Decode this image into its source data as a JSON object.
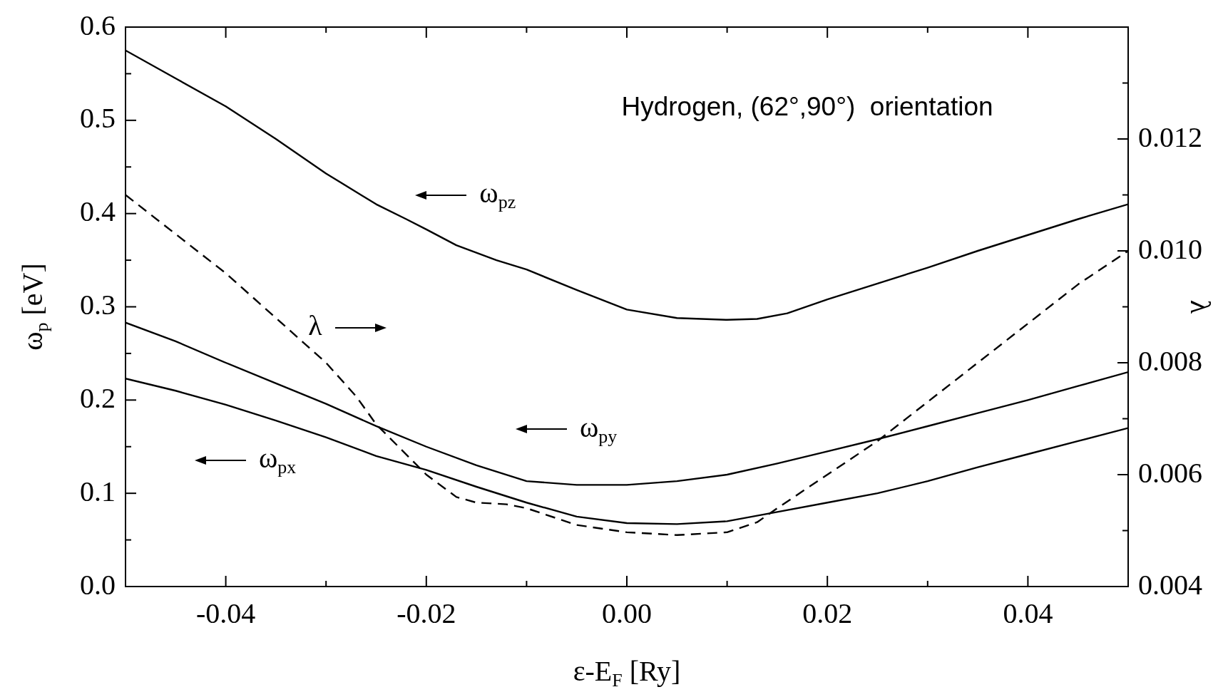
{
  "chart_data": {
    "type": "line",
    "title": "Hydrogen, (62°,90°)  orientation",
    "xlabel": "ε-E$_{F}$ [Ry]",
    "ylabel": "ω$_{p}$ [eV]",
    "y2label": "λ",
    "xlim": [
      -0.05,
      0.05
    ],
    "xticks": [
      {
        "value": -0.05,
        "label": null
      },
      -0.04,
      {
        "value": -0.03,
        "label": null
      },
      -0.02,
      {
        "value": -0.01,
        "label": null
      },
      {
        "value": 0,
        "label": "0.00"
      },
      {
        "value": 0.01,
        "label": null
      },
      0.02,
      {
        "value": 0.03,
        "label": null
      },
      0.04,
      {
        "value": 0.05,
        "label": null
      }
    ],
    "ylim": [
      0,
      0.6
    ],
    "yticks": [
      {
        "value": 0,
        "label": "0.0"
      },
      {
        "value": 0.05,
        "label": null
      },
      0.1,
      {
        "value": 0.15,
        "label": null
      },
      0.2,
      {
        "value": 0.25,
        "label": null
      },
      0.3,
      {
        "value": 0.35,
        "label": null
      },
      0.4,
      {
        "value": 0.45,
        "label": null
      },
      0.5,
      {
        "value": 0.55,
        "label": null
      },
      0.6
    ],
    "y2lim": [
      0.004,
      0.014
    ],
    "y2ticks": [
      0.004,
      {
        "value": 0.005,
        "label": null
      },
      0.006,
      {
        "value": 0.007,
        "label": null
      },
      0.008,
      {
        "value": 0.009,
        "label": null
      },
      {
        "value": 0.01,
        "label": "0.010"
      },
      {
        "value": 0.011,
        "label": null
      },
      0.012,
      {
        "value": 0.013,
        "label": null
      }
    ],
    "marker": "none",
    "legend": "left",
    "x": [
      -0.05,
      -0.045,
      -0.04,
      -0.035,
      -0.03,
      -0.025,
      -0.02,
      -0.015,
      -0.01,
      -0.005,
      0,
      0.005,
      0.01,
      0.015,
      0.02,
      0.025,
      0.03,
      0.035,
      0.04,
      0.045,
      0.05
    ],
    "series": [
      {
        "name": "ω$_{pz}$",
        "color": "#000000",
        "line_style": "solid",
        "x": [
          -0.05,
          -0.045,
          -0.04,
          -0.035,
          -0.03,
          -0.025,
          -0.022,
          -0.02,
          -0.017,
          -0.013,
          -0.01,
          -0.005,
          0,
          0.005,
          0.01,
          0.013,
          0.016,
          0.02,
          0.025,
          0.03,
          0.035,
          0.04,
          0.045,
          0.05
        ],
        "values": [
          0.575,
          0.545,
          0.515,
          0.48,
          0.443,
          0.41,
          0.394,
          0.383,
          0.366,
          0.35,
          0.34,
          0.318,
          0.297,
          0.288,
          0.286,
          0.287,
          0.293,
          0.308,
          0.325,
          0.342,
          0.36,
          0.377,
          0.394,
          0.41
        ]
      },
      {
        "name": "ω$_{py}$",
        "color": "#000000",
        "line_style": "solid",
        "values": [
          0.283,
          0.263,
          0.24,
          0.218,
          0.196,
          0.172,
          0.15,
          0.13,
          0.113,
          0.109,
          0.109,
          0.113,
          0.12,
          0.132,
          0.145,
          0.158,
          0.172,
          0.186,
          0.2,
          0.215,
          0.23
        ]
      },
      {
        "name": "ω$_{px}$",
        "color": "#000000",
        "line_style": "solid",
        "values": [
          0.223,
          0.21,
          0.195,
          0.178,
          0.16,
          0.14,
          0.125,
          0.107,
          0.09,
          0.075,
          0.068,
          0.067,
          0.07,
          0.08,
          0.09,
          0.1,
          0.113,
          0.128,
          0.142,
          0.156,
          0.17
        ]
      },
      {
        "name": "λ",
        "color": "#000000",
        "line_style": "dashed",
        "axis": "y2",
        "x": [
          -0.05,
          -0.045,
          -0.04,
          -0.035,
          -0.03,
          -0.027,
          -0.025,
          -0.02,
          -0.017,
          -0.015,
          -0.012,
          -0.01,
          -0.005,
          0,
          0.005,
          0.01,
          0.013,
          0.015,
          0.02,
          0.025,
          0.03,
          0.035,
          0.04,
          0.045,
          0.05
        ],
        "values": [
          0.011,
          0.0103,
          0.0096,
          0.0088,
          0.008,
          0.0074,
          0.0069,
          0.006,
          0.0056,
          0.0055,
          0.00547,
          0.0054,
          0.0051,
          0.00497,
          0.00492,
          0.00497,
          0.00515,
          0.0054,
          0.006,
          0.0066,
          0.0073,
          0.008,
          0.0087,
          0.0094,
          0.01
        ]
      }
    ]
  }
}
